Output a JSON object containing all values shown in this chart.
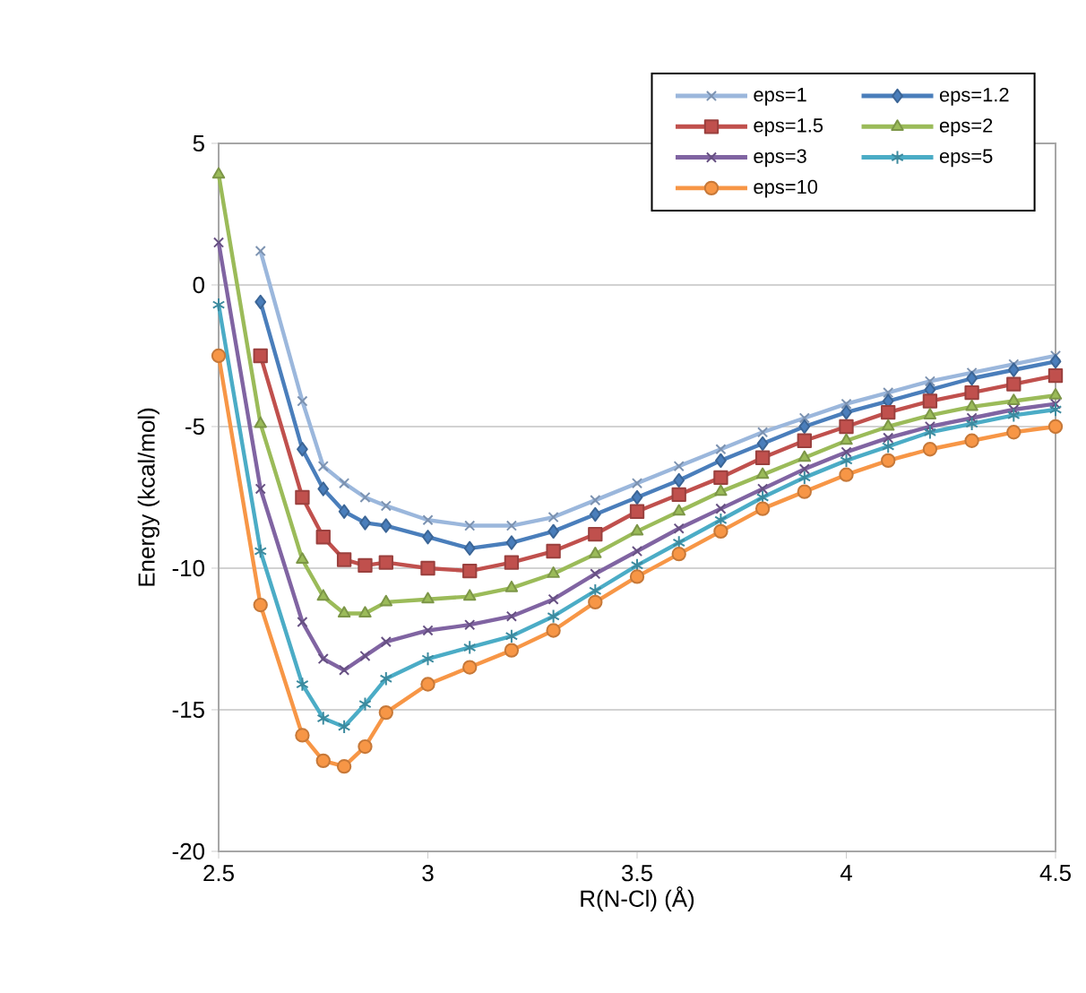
{
  "chart_data": {
    "type": "line",
    "xlabel": "R(N-Cl) (Å)",
    "ylabel": "Energy (kcal/mol)",
    "x": [
      2.5,
      2.6,
      2.7,
      2.75,
      2.8,
      2.85,
      2.9,
      3.0,
      3.1,
      3.2,
      3.3,
      3.4,
      3.5,
      3.6,
      3.7,
      3.8,
      3.9,
      4.0,
      4.1,
      4.2,
      4.3,
      4.4,
      4.5
    ],
    "xlim": [
      2.5,
      4.5
    ],
    "xticks": [
      2.5,
      3,
      3.5,
      4,
      4.5
    ],
    "ylim": [
      -20,
      5
    ],
    "yticks": [
      -20,
      -15,
      -10,
      -5,
      0,
      5
    ],
    "grid": "y",
    "legend": "top right",
    "line_style": "solid",
    "series": [
      {
        "name": "eps=1",
        "color": "#9bb7dc",
        "marker": "cross",
        "values": [
          null,
          1.2,
          -4.1,
          -6.4,
          -7.0,
          -7.5,
          -7.8,
          -8.3,
          -8.5,
          -8.5,
          -8.2,
          -7.6,
          -7.0,
          -6.4,
          -5.8,
          -5.2,
          -4.7,
          -4.2,
          -3.8,
          -3.4,
          -3.1,
          -2.8,
          -2.5
        ]
      },
      {
        "name": "eps=1.2",
        "color": "#4a7ebb",
        "marker": "diamond",
        "values": [
          null,
          -0.6,
          -5.8,
          -7.2,
          -8.0,
          -8.4,
          -8.5,
          -8.9,
          -9.3,
          -9.1,
          -8.7,
          -8.1,
          -7.5,
          -6.9,
          -6.2,
          -5.6,
          -5.0,
          -4.5,
          -4.1,
          -3.7,
          -3.3,
          -3.0,
          -2.7
        ]
      },
      {
        "name": "eps=1.5",
        "color": "#c0504d",
        "marker": "square",
        "values": [
          null,
          -2.5,
          -7.5,
          -8.9,
          -9.7,
          -9.9,
          -9.8,
          -10.0,
          -10.1,
          -9.8,
          -9.4,
          -8.8,
          -8.0,
          -7.4,
          -6.8,
          -6.1,
          -5.5,
          -5.0,
          -4.5,
          -4.1,
          -3.8,
          -3.5,
          -3.2
        ]
      },
      {
        "name": "eps=2",
        "color": "#9bbb59",
        "marker": "triangle",
        "values": [
          3.9,
          -4.9,
          -9.7,
          -11.0,
          -11.6,
          -11.6,
          -11.2,
          -11.1,
          -11.0,
          -10.7,
          -10.2,
          -9.5,
          -8.7,
          -8.0,
          -7.3,
          -6.7,
          -6.1,
          -5.5,
          -5.0,
          -4.6,
          -4.3,
          -4.1,
          -3.9
        ]
      },
      {
        "name": "eps=3",
        "color": "#8064a2",
        "marker": "cross",
        "values": [
          1.5,
          -7.2,
          -11.9,
          -13.2,
          -13.6,
          -13.1,
          -12.6,
          -12.2,
          -12.0,
          -11.7,
          -11.1,
          -10.2,
          -9.4,
          -8.6,
          -7.9,
          -7.2,
          -6.5,
          -5.9,
          -5.4,
          -5.0,
          -4.7,
          -4.4,
          -4.2
        ]
      },
      {
        "name": "eps=5",
        "color": "#4bacc6",
        "marker": "cross",
        "values": [
          -0.7,
          -9.4,
          -14.1,
          -15.3,
          -15.6,
          -14.8,
          -13.9,
          -13.2,
          -12.8,
          -12.4,
          -11.7,
          -10.8,
          -9.9,
          -9.1,
          -8.3,
          -7.5,
          -6.8,
          -6.2,
          -5.7,
          -5.2,
          -4.9,
          -4.6,
          -4.4
        ]
      },
      {
        "name": "eps=10",
        "color": "#f79646",
        "marker": "circle",
        "values": [
          -2.5,
          -11.3,
          -15.9,
          -16.8,
          -17.0,
          -16.3,
          -15.1,
          -14.1,
          -13.5,
          -12.9,
          -12.2,
          -11.2,
          -10.3,
          -9.5,
          -8.7,
          -7.9,
          -7.3,
          -6.7,
          -6.2,
          -5.8,
          -5.5,
          -5.2,
          -5.0
        ]
      }
    ]
  }
}
